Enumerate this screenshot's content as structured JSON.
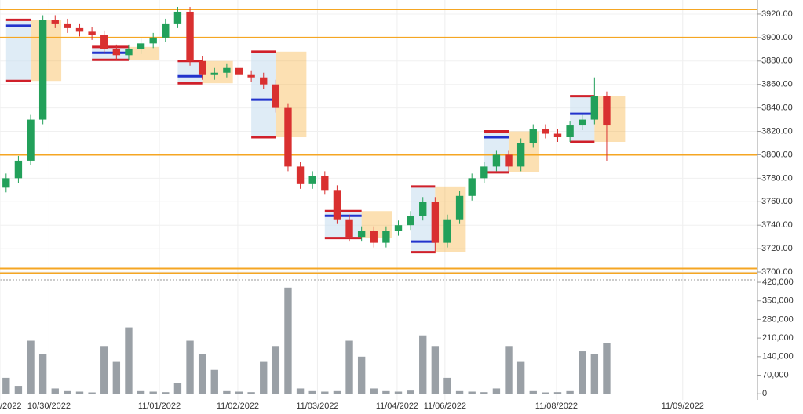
{
  "chart_data": {
    "type": "candlestick",
    "xlim": [
      0,
      65
    ],
    "xticks": [
      {
        "value": 0,
        "label": "/2022"
      },
      {
        "value": 4,
        "label": "10/30/2022"
      },
      {
        "value": 13,
        "label": "11/01/2022"
      },
      {
        "value": 19.4,
        "label": "11/02/2022"
      },
      {
        "value": 25.9,
        "label": "11/03/2022"
      },
      {
        "value": 32.4,
        "label": "11/04/2022"
      },
      {
        "value": 36.3,
        "label": "11/06/2022"
      },
      {
        "value": 45.4,
        "label": "11/08/2022"
      },
      {
        "value": 55.7,
        "label": "11/09/2022"
      }
    ],
    "ylim": [
      3695,
      3932
    ],
    "yticks": [
      3700,
      3720,
      3740,
      3760,
      3780,
      3800,
      3820,
      3840,
      3860,
      3880,
      3900,
      3920
    ],
    "ytick_labels": [
      "3700.00",
      "3720.00",
      "3740.00",
      "3760.00",
      "3780.00",
      "3800.00",
      "3820.00",
      "3840.00",
      "3860.00",
      "3880.00",
      "3900.00",
      "3920.00"
    ],
    "grid": true,
    "up_color": "#22a05a",
    "down_color": "#d93030",
    "open": [
      3772,
      3780,
      3795,
      3830,
      3915,
      3912,
      3908,
      3905,
      3902,
      3890,
      3885,
      3890,
      3895,
      3900,
      3912,
      3922,
      3880,
      3868,
      3870,
      3874,
      3868,
      3866,
      3860,
      3840,
      3790,
      3775,
      3782,
      3770,
      3745,
      3730,
      3735,
      3725,
      3735,
      3740,
      3748,
      3760,
      3725,
      3745,
      3765,
      3780,
      3790,
      3800,
      3790,
      3810,
      3822,
      3818,
      3815,
      3825,
      3830,
      3850
    ],
    "high": [
      3784,
      3799,
      3834,
      3919,
      3919,
      3916,
      3912,
      3909,
      3906,
      3894,
      3894,
      3899,
      3904,
      3916,
      3926,
      3926,
      3884,
      3874,
      3878,
      3878,
      3872,
      3870,
      3864,
      3844,
      3794,
      3786,
      3786,
      3774,
      3749,
      3739,
      3739,
      3739,
      3744,
      3752,
      3764,
      3764,
      3749,
      3769,
      3784,
      3794,
      3804,
      3804,
      3814,
      3826,
      3826,
      3822,
      3829,
      3834,
      3866,
      3854
    ],
    "low": [
      3768,
      3776,
      3791,
      3826,
      3908,
      3904,
      3901,
      3898,
      3886,
      3881,
      3881,
      3886,
      3891,
      3896,
      3908,
      3876,
      3864,
      3864,
      3866,
      3864,
      3862,
      3856,
      3836,
      3786,
      3771,
      3771,
      3766,
      3741,
      3726,
      3726,
      3721,
      3721,
      3731,
      3736,
      3744,
      3716,
      3721,
      3741,
      3761,
      3776,
      3786,
      3786,
      3786,
      3806,
      3814,
      3811,
      3811,
      3821,
      3826,
      3795
    ],
    "close": [
      3780,
      3795,
      3830,
      3915,
      3912,
      3908,
      3905,
      3902,
      3890,
      3885,
      3890,
      3895,
      3900,
      3912,
      3922,
      3880,
      3868,
      3870,
      3874,
      3868,
      3866,
      3860,
      3840,
      3790,
      3775,
      3782,
      3770,
      3745,
      3730,
      3735,
      3725,
      3735,
      3740,
      3748,
      3760,
      3725,
      3745,
      3765,
      3780,
      3790,
      3800,
      3790,
      3810,
      3822,
      3818,
      3815,
      3825,
      3830,
      3850,
      3825
    ],
    "levels": [
      3924,
      3900,
      3800,
      3703,
      3699
    ],
    "level_color": "#f5a623",
    "profiles": [
      {
        "start": 1,
        "end": 2,
        "vah": 3915,
        "poc": 3910,
        "val": 3863
      },
      {
        "start": 8,
        "end": 10,
        "vah": 3892,
        "poc": 3887,
        "val": 3881
      },
      {
        "start": 15,
        "end": 16,
        "vah": 3880,
        "poc": 3867,
        "val": 3861
      },
      {
        "start": 21,
        "end": 22,
        "vah": 3888,
        "poc": 3847,
        "val": 3815
      },
      {
        "start": 27,
        "end": 29,
        "vah": 3752,
        "poc": 3748,
        "val": 3729
      },
      {
        "start": 34,
        "end": 35,
        "vah": 3773,
        "poc": 3726,
        "val": 3717
      },
      {
        "start": 40,
        "end": 41,
        "vah": 3820,
        "poc": 3815,
        "val": 3785
      },
      {
        "start": 47,
        "end": 48,
        "vah": 3850,
        "poc": 3835,
        "val": 3811
      }
    ],
    "volume": {
      "color": "#9aa0a6",
      "ylim": [
        -23000,
        426000
      ],
      "yticks": [
        0,
        {
          "value": 70000,
          "label": "70,000"
        },
        {
          "value": 140000,
          "label": "140,000"
        },
        {
          "value": 210000,
          "label": "210,000"
        },
        {
          "value": 280000,
          "label": "280,000"
        },
        {
          "value": 350000,
          "label": "350,000"
        },
        {
          "value": 420000,
          "label": "420,000"
        }
      ],
      "values": [
        60000,
        30000,
        200000,
        150000,
        20000,
        10000,
        8000,
        5000,
        180000,
        120000,
        250000,
        10000,
        8000,
        6000,
        40000,
        200000,
        150000,
        90000,
        10000,
        8000,
        6000,
        120000,
        180000,
        400000,
        20000,
        10000,
        8000,
        10000,
        200000,
        140000,
        20000,
        10000,
        8000,
        12000,
        220000,
        180000,
        60000,
        10000,
        8000,
        6000,
        20000,
        180000,
        120000,
        10000,
        5000,
        6000,
        10000,
        160000,
        150000,
        190000
      ]
    }
  }
}
